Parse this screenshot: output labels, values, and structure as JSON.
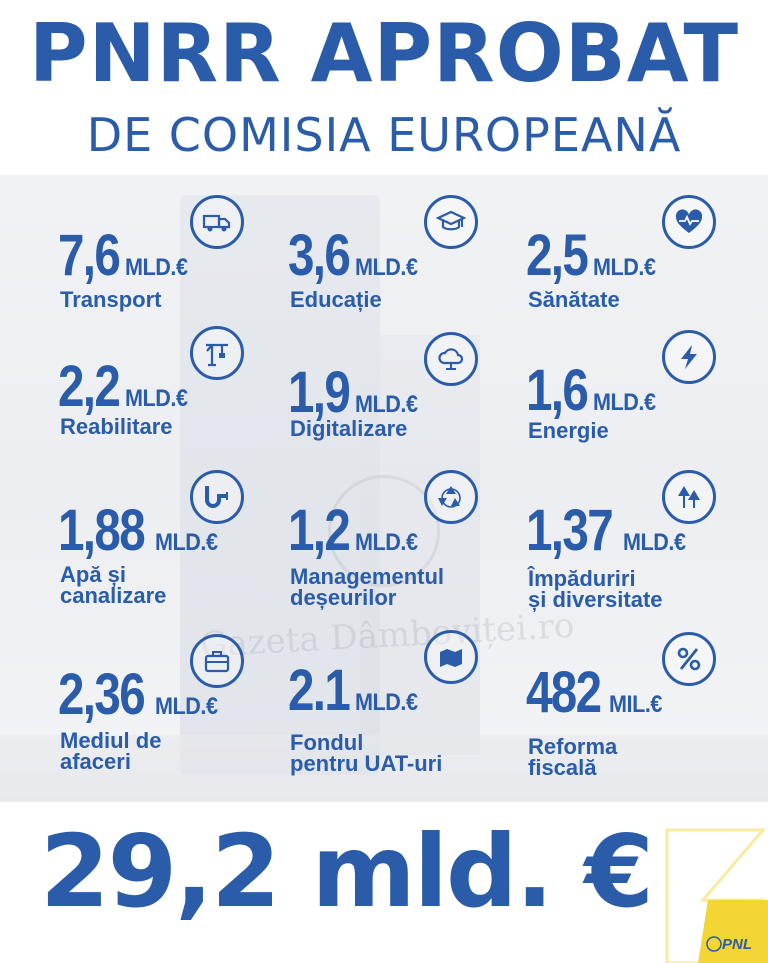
{
  "header": {
    "title": "PNRR APROBAT",
    "subtitle": "DE COMISIA EUROPEANĂ"
  },
  "items": [
    {
      "value": "7,6",
      "unit": "MLD.€",
      "label_lines": [
        "Transport",
        ""
      ],
      "icon": "truck-icon"
    },
    {
      "value": "3,6",
      "unit": "MLD.€",
      "label_lines": [
        "Educație",
        ""
      ],
      "icon": "graduation-cap-icon"
    },
    {
      "value": "2,5",
      "unit": "MLD.€",
      "label_lines": [
        "Sănătate",
        ""
      ],
      "icon": "heart-pulse-icon"
    },
    {
      "value": "2,2",
      "unit": "MLD.€",
      "label_lines": [
        "Reabilitare",
        ""
      ],
      "icon": "crane-icon"
    },
    {
      "value": "1,9",
      "unit": "MLD.€",
      "label_lines": [
        "Digitalizare",
        ""
      ],
      "icon": "cloud-network-icon"
    },
    {
      "value": "1,6",
      "unit": "MLD.€",
      "label_lines": [
        "Energie",
        ""
      ],
      "icon": "lightning-icon"
    },
    {
      "value": "1,88",
      "unit": "MLD.€",
      "label_lines": [
        "Apă și",
        "canalizare"
      ],
      "icon": "pipes-icon"
    },
    {
      "value": "1,2",
      "unit": "MLD.€",
      "label_lines": [
        "Managementul",
        "deșeurilor"
      ],
      "icon": "recycle-icon"
    },
    {
      "value": "1,37",
      "unit": "MLD.€",
      "label_lines": [
        "Împăduriri",
        "și diversitate"
      ],
      "icon": "trees-icon"
    },
    {
      "value": "2,36",
      "unit": "MLD.€",
      "label_lines": [
        "Mediul de",
        "afaceri"
      ],
      "icon": "briefcase-icon"
    },
    {
      "value": "2.1",
      "unit": "MLD.€",
      "label_lines": [
        "Fondul",
        "pentru UAT-uri"
      ],
      "icon": "map-icon"
    },
    {
      "value": "482",
      "unit": "MIL.€",
      "label_lines": [
        "Reforma",
        "fiscală"
      ],
      "icon": "percent-icon"
    }
  ],
  "total": "29,2 mld. €",
  "watermark": "Gazeta Dâmboviței.ro",
  "brand": "PNL",
  "colors": {
    "primary": "#2a5caa",
    "accent": "#f3d633",
    "panel": "#eef0f3"
  }
}
